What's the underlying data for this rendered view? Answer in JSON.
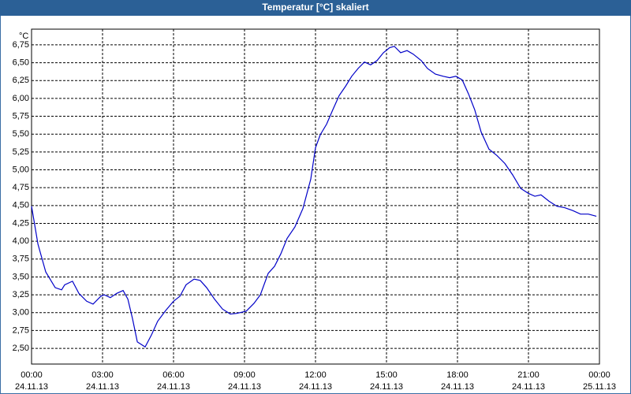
{
  "chart_data": {
    "type": "line",
    "title": "Temperatur [°C] skaliert",
    "y_unit": "°C",
    "x": [
      0,
      0.27,
      0.6,
      1.0,
      1.27,
      1.4,
      1.73,
      2.0,
      2.33,
      2.6,
      2.93,
      3.07,
      3.33,
      3.6,
      3.87,
      4.07,
      4.27,
      4.47,
      4.8,
      5.07,
      5.33,
      5.67,
      6.0,
      6.27,
      6.53,
      6.87,
      7.13,
      7.4,
      7.73,
      8.07,
      8.4,
      8.67,
      9.07,
      9.4,
      9.67,
      10.0,
      10.27,
      10.53,
      10.8,
      11.13,
      11.47,
      11.8,
      12.0,
      12.2,
      12.47,
      12.73,
      13.0,
      13.27,
      13.53,
      13.8,
      14.07,
      14.33,
      14.6,
      14.87,
      15.13,
      15.33,
      15.6,
      15.87,
      16.13,
      16.47,
      16.73,
      17.07,
      17.4,
      17.67,
      17.93,
      18.2,
      18.47,
      18.73,
      19.0,
      19.33,
      19.67,
      20.0,
      20.33,
      20.67,
      21.0,
      21.27,
      21.53,
      21.87,
      22.2,
      22.53,
      22.87,
      23.2,
      23.53,
      23.87
    ],
    "series": [
      {
        "color": "#0000c8",
        "values": [
          4.49,
          3.96,
          3.57,
          3.35,
          3.32,
          3.39,
          3.44,
          3.27,
          3.16,
          3.12,
          3.23,
          3.25,
          3.21,
          3.27,
          3.31,
          3.19,
          2.91,
          2.59,
          2.52,
          2.69,
          2.88,
          3.03,
          3.16,
          3.23,
          3.39,
          3.47,
          3.45,
          3.35,
          3.19,
          3.05,
          2.98,
          2.99,
          3.02,
          3.13,
          3.25,
          3.55,
          3.65,
          3.82,
          4.04,
          4.2,
          4.46,
          4.87,
          5.31,
          5.49,
          5.64,
          5.84,
          6.04,
          6.17,
          6.31,
          6.42,
          6.51,
          6.47,
          6.53,
          6.64,
          6.71,
          6.73,
          6.64,
          6.67,
          6.62,
          6.53,
          6.42,
          6.34,
          6.31,
          6.29,
          6.31,
          6.26,
          6.06,
          5.84,
          5.53,
          5.29,
          5.2,
          5.09,
          4.93,
          4.74,
          4.67,
          4.63,
          4.65,
          4.56,
          4.49,
          4.47,
          4.43,
          4.38,
          4.38,
          4.35
        ]
      }
    ],
    "xlim": [
      0,
      24
    ],
    "xticks": [
      {
        "value": 0,
        "label": "00:00"
      },
      {
        "value": 3,
        "label": "03:00"
      },
      {
        "value": 6,
        "label": "06:00"
      },
      {
        "value": 9,
        "label": "09:00"
      },
      {
        "value": 12,
        "label": "12:00"
      },
      {
        "value": 15,
        "label": "15:00"
      },
      {
        "value": 18,
        "label": "18:00"
      },
      {
        "value": 21,
        "label": "21:00"
      },
      {
        "value": 24,
        "label": "00:00"
      }
    ],
    "xtick_dates": [
      "24.11.13",
      "24.11.13",
      "24.11.13",
      "24.11.13",
      "24.11.13",
      "24.11.13",
      "24.11.13",
      "24.11.13",
      "25.11.13"
    ],
    "ylim": [
      2.28,
      6.97
    ],
    "yticks": [
      {
        "value": 2.5,
        "label": "2,50"
      },
      {
        "value": 2.75,
        "label": "2,75"
      },
      {
        "value": 3,
        "label": "3,00"
      },
      {
        "value": 3.25,
        "label": "3,25"
      },
      {
        "value": 3.5,
        "label": "3,50"
      },
      {
        "value": 3.75,
        "label": "3,75"
      },
      {
        "value": 4,
        "label": "4,00"
      },
      {
        "value": 4.25,
        "label": "4,25"
      },
      {
        "value": 4.5,
        "label": "4,50"
      },
      {
        "value": 4.75,
        "label": "4,75"
      },
      {
        "value": 5,
        "label": "5,00"
      },
      {
        "value": 5.25,
        "label": "5,25"
      },
      {
        "value": 5.5,
        "label": "5,50"
      },
      {
        "value": 5.75,
        "label": "5,75"
      },
      {
        "value": 6,
        "label": "6,00"
      },
      {
        "value": 6.25,
        "label": "6,25"
      },
      {
        "value": 6.5,
        "label": "6,50"
      },
      {
        "value": 6.75,
        "label": "6,75"
      }
    ],
    "grid": true
  }
}
